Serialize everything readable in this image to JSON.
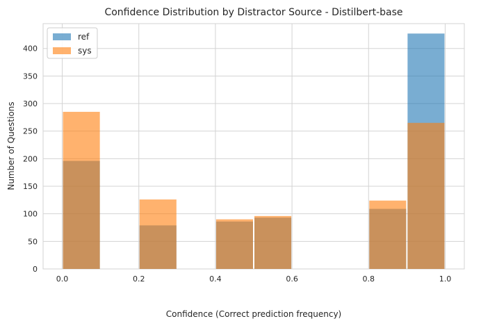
{
  "chart_data": {
    "type": "bar",
    "title": "Confidence Distribution by Distractor Source - Distilbert-base",
    "xlabel": "Confidence (Correct prediction frequency)",
    "ylabel": "Number of Questions",
    "xlim": [
      -0.05,
      1.05
    ],
    "ylim": [
      0,
      445
    ],
    "xticks": [
      0.0,
      0.2,
      0.4,
      0.6,
      0.8,
      1.0
    ],
    "xtick_labels": [
      "0.0",
      "0.2",
      "0.4",
      "0.6",
      "0.8",
      "1.0"
    ],
    "yticks": [
      0,
      50,
      100,
      150,
      200,
      250,
      300,
      350,
      400
    ],
    "ytick_labels": [
      "0",
      "50",
      "100",
      "150",
      "200",
      "250",
      "300",
      "350",
      "400"
    ],
    "grid": true,
    "legend_position": "top-left",
    "bin_edges": [
      0.0,
      0.1,
      0.2,
      0.3,
      0.4,
      0.5,
      0.6,
      0.7,
      0.8,
      0.9,
      1.0
    ],
    "series": [
      {
        "name": "ref",
        "color": "#1f77b4",
        "values": [
          196,
          0,
          79,
          0,
          86,
          93,
          0,
          0,
          109,
          427
        ]
      },
      {
        "name": "sys",
        "color": "#ff7f0e",
        "values": [
          285,
          0,
          126,
          0,
          90,
          96,
          0,
          0,
          124,
          265
        ]
      }
    ]
  }
}
